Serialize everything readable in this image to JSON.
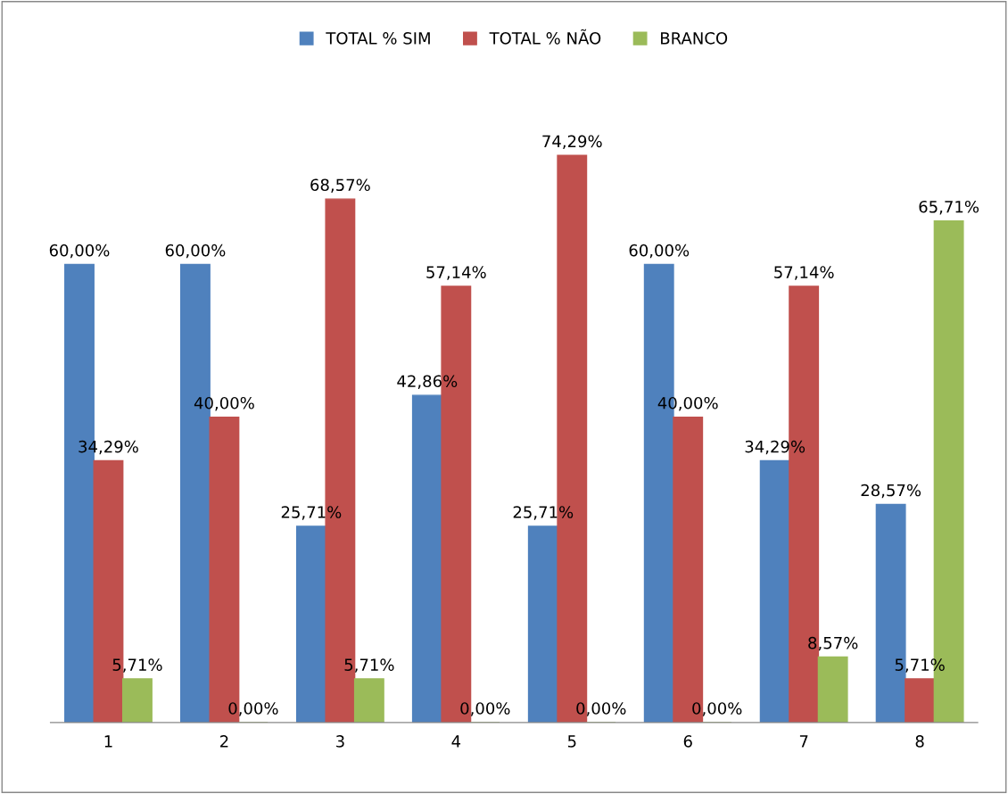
{
  "chart_data": {
    "type": "bar",
    "categories": [
      "1",
      "2",
      "3",
      "4",
      "5",
      "6",
      "7",
      "8"
    ],
    "legend": "top",
    "grid": false,
    "tick_labels": "x",
    "series": [
      {
        "name": "TOTAL % SIM",
        "color": "#4f81bd",
        "values": [
          60.0,
          60.0,
          25.71,
          42.86,
          25.71,
          60.0,
          34.29,
          28.57
        ],
        "value_labels": [
          "60,00%",
          "60,00%",
          "25,71%",
          "42,86%",
          "25,71%",
          "60,00%",
          "34,29%",
          "28,57%"
        ]
      },
      {
        "name": "TOTAL % NÃO",
        "color": "#c0504d",
        "values": [
          34.29,
          40.0,
          68.57,
          57.14,
          74.29,
          40.0,
          57.14,
          5.71
        ],
        "value_labels": [
          "34,29%",
          "40,00%",
          "68,57%",
          "57,14%",
          "74,29%",
          "40,00%",
          "57,14%",
          "5,71%"
        ]
      },
      {
        "name": "BRANCO",
        "color": "#9bbb59",
        "values": [
          5.71,
          0.0,
          5.71,
          0.0,
          0.0,
          0.0,
          8.57,
          65.71
        ],
        "value_labels": [
          "5,71%",
          "0,00%",
          "5,71%",
          "0,00%",
          "0,00%",
          "0,00%",
          "8,57%",
          "65,71%"
        ]
      }
    ]
  }
}
